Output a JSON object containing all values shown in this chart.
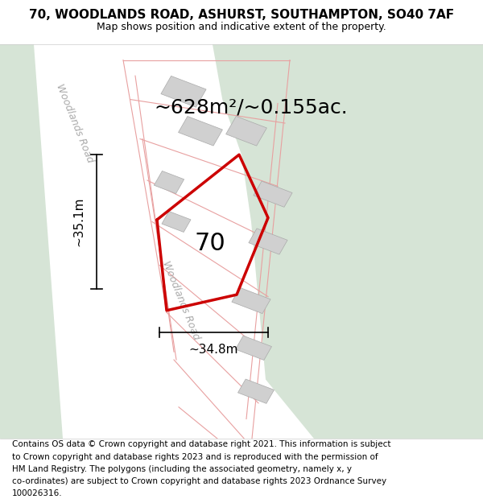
{
  "title_line1": "70, WOODLANDS ROAD, ASHURST, SOUTHAMPTON, SO40 7AF",
  "title_line2": "Map shows position and indicative extent of the property.",
  "area_text": "~628m²/~0.155ac.",
  "label_70": "70",
  "dim_vertical": "~35.1m",
  "dim_horizontal": "~34.8m",
  "road_label_top": "Woodlands Road",
  "road_label_bottom": "Woodlands Road",
  "footer_lines": [
    "Contains OS data © Crown copyright and database right 2021. This information is subject",
    "to Crown copyright and database rights 2023 and is reproduced with the permission of",
    "HM Land Registry. The polygons (including the associated geometry, namely x, y",
    "co-ordinates) are subject to Crown copyright and database rights 2023 Ordnance Survey",
    "100026316."
  ],
  "bg_map_color": "#f2f2f2",
  "bg_green_color": "#d6e4d6",
  "road_white_color": "#ffffff",
  "plot_outline_color": "#cc0000",
  "building_color": "#d0d0d0",
  "parcel_line_color": "#e8a0a0",
  "title_fontsize": 11,
  "subtitle_fontsize": 9,
  "area_fontsize": 18,
  "label_fontsize": 22,
  "dim_fontsize": 11,
  "road_fontsize": 9,
  "footer_fontsize": 7.5
}
